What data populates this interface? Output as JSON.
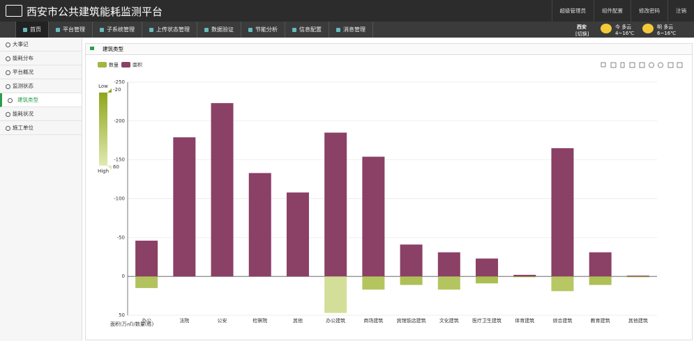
{
  "header": {
    "title": "西安市公共建筑能耗监测平台",
    "actions": [
      "超级管理员",
      "组件配置",
      "修改密码",
      "注销"
    ]
  },
  "nav": {
    "items": [
      "首页",
      "平台管理",
      "子系统管理",
      "上传状态管理",
      "数据验证",
      "节能分析",
      "信息配置",
      "消息管理"
    ],
    "active": 0
  },
  "weather": {
    "city": "西安",
    "switch": "[切换]",
    "today": "今 多云",
    "today_temp": "4~16℃",
    "tomorrow": "明 多云",
    "tomorrow_temp": "6~16℃"
  },
  "sidebar": {
    "items": [
      "大事记",
      "能耗分布",
      "平台概况",
      "监测状态",
      "建筑类型",
      "能耗状况",
      "施工单位"
    ],
    "active": 4
  },
  "panel": {
    "title": "建筑类型"
  },
  "chart_data": {
    "type": "bar",
    "y_label": "面积(万㎡)/数量(栋)",
    "categories": [
      "办公",
      "法院",
      "公安",
      "检察院",
      "其他",
      "办公建筑",
      "商场建筑",
      "宾馆饭店建筑",
      "文化建筑",
      "医疗卫生建筑",
      "体育建筑",
      "综合建筑",
      "教育建筑",
      "其他建筑"
    ],
    "series": [
      {
        "name": "数量",
        "color": "#a8bb3a",
        "values": [
          15,
          0,
          0,
          0,
          0,
          47,
          17,
          11,
          17,
          9,
          1,
          19,
          11,
          1
        ]
      },
      {
        "name": "面积",
        "color": "#8b4066",
        "values": [
          -46,
          -179,
          -223,
          -133,
          -108,
          -185,
          -154,
          -41,
          -31,
          -23,
          -2,
          -165,
          -31,
          -1
        ]
      }
    ],
    "ylim": [
      -250,
      50
    ],
    "yticks": [
      -250,
      -200,
      -150,
      -100,
      -50,
      0,
      50
    ],
    "grid": true,
    "visual_map": {
      "min": -20,
      "max": 60,
      "low": "Low",
      "high": "High",
      "colors": [
        "#8fa51c",
        "#e0eab0"
      ]
    }
  }
}
